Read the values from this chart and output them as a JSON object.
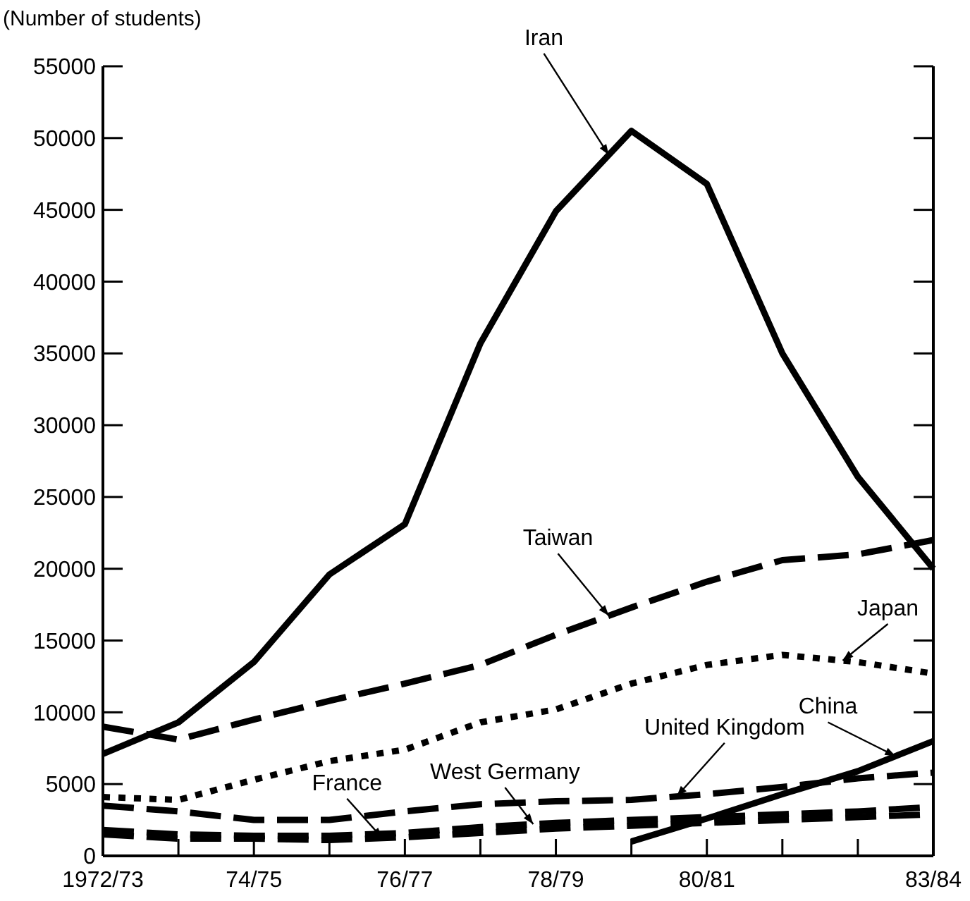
{
  "chart_data": {
    "type": "line",
    "ylabel": "(Number of students)",
    "categories": [
      "1972/73",
      null,
      "74/75",
      null,
      "76/77",
      null,
      "78/79",
      null,
      "80/81",
      null,
      null,
      "83/84"
    ],
    "series": [
      {
        "name": "Iran",
        "color": "#000000",
        "line_style": "solid",
        "values": [
          7100,
          9300,
          13500,
          19600,
          23100,
          35700,
          44900,
          50500,
          46800,
          35000,
          26400,
          20000
        ]
      },
      {
        "name": "Taiwan",
        "color": "#000000",
        "line_style": "dashed",
        "values": [
          9000,
          8100,
          9500,
          10800,
          12000,
          13300,
          15400,
          17300,
          19100,
          20600,
          21000,
          22000
        ]
      },
      {
        "name": "Japan",
        "color": "#000000",
        "line_style": "dotted",
        "values": [
          4100,
          3900,
          5300,
          6600,
          7400,
          9300,
          10200,
          12000,
          13300,
          14000,
          13500,
          12700
        ]
      },
      {
        "name": "China",
        "color": "#000000",
        "line_style": "solid",
        "values": [
          null,
          null,
          null,
          null,
          null,
          null,
          null,
          1000,
          2600,
          4300,
          5900,
          8000
        ]
      },
      {
        "name": "United Kingdom",
        "color": "#000000",
        "line_style": "dashed",
        "values": [
          3500,
          3100,
          2500,
          2500,
          3100,
          3600,
          3800,
          3900,
          4300,
          4800,
          5400,
          5800
        ]
      },
      {
        "name": "West Germany",
        "color": "#000000",
        "line_style": "dashed",
        "values": [
          1800,
          1500,
          1400,
          1400,
          1600,
          2000,
          2300,
          2500,
          2700,
          2900,
          3100,
          3400
        ]
      },
      {
        "name": "France",
        "color": "#000000",
        "line_style": "dashed",
        "values": [
          1500,
          1200,
          1200,
          1100,
          1300,
          1600,
          1900,
          2100,
          2300,
          2500,
          2700,
          2900
        ]
      }
    ],
    "ylim": [
      0,
      55000
    ],
    "yticks": [
      0,
      5000,
      10000,
      15000,
      20000,
      25000,
      30000,
      35000,
      40000,
      45000,
      50000,
      55000
    ],
    "grid": false,
    "marker": "none"
  }
}
